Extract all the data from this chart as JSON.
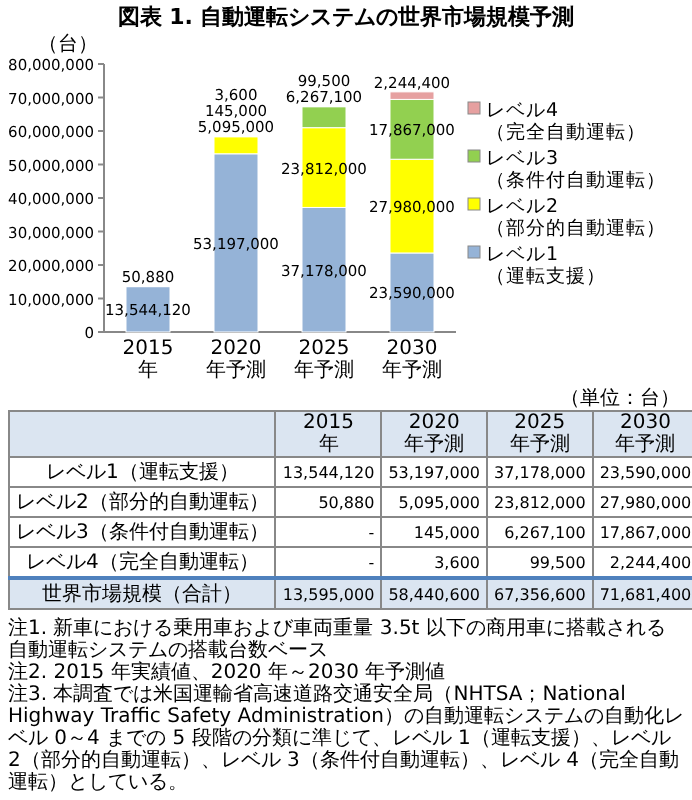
{
  "chart_data": {
    "type": "bar",
    "stacked": true,
    "title": "図表 1. 自動運転システムの世界市場規模予測",
    "ylabel": "（台）",
    "categories": [
      "2015年",
      "2020年予測",
      "2025年予測",
      "2030年予測"
    ],
    "series": [
      {
        "name": "レベル1\n（運転支援）",
        "color": "#95b3d7",
        "values": [
          13544120,
          53197000,
          37178000,
          23590000
        ],
        "value_labels": [
          "13,544,120",
          "53,197,000",
          "37,178,000",
          "23,590,000"
        ]
      },
      {
        "name": "レベル2\n（部分的自動運転）",
        "color": "#ffff00",
        "values": [
          50880,
          5095000,
          23812000,
          27980000
        ],
        "value_labels": [
          "50,880",
          "5,095,000",
          "23,812,000",
          "27,980,000"
        ]
      },
      {
        "name": "レベル3\n（条件付自動運転）",
        "color": "#92d050",
        "values": [
          null,
          145000,
          6267100,
          17867000
        ],
        "value_labels": [
          "-",
          "145,000",
          "6,267,100",
          "17,867,000"
        ]
      },
      {
        "name": "レベル4\n（完全自動運転）",
        "color": "#e6a0a0",
        "values": [
          null,
          3600,
          99500,
          2244400
        ],
        "value_labels": [
          "-",
          "3,600",
          "99,500",
          "2,244,400"
        ]
      }
    ],
    "ylim": [
      0,
      80000000
    ],
    "yticks": [
      {
        "value": 0,
        "label": "0"
      },
      {
        "value": 10000000,
        "label": "10,000,000"
      },
      {
        "value": 20000000,
        "label": "20,000,000"
      },
      {
        "value": 30000000,
        "label": "30,000,000"
      },
      {
        "value": 40000000,
        "label": "40,000,000"
      },
      {
        "value": 50000000,
        "label": "50,000,000"
      },
      {
        "value": 60000000,
        "label": "60,000,000"
      },
      {
        "value": 70000000,
        "label": "70,000,000"
      },
      {
        "value": 80000000,
        "label": "80,000,000"
      }
    ],
    "legend": "right",
    "grid": false,
    "annotations": [
      "（単位：台）",
      "世界市場規模（合計）",
      "13,595,000",
      "58,440,600",
      "67,356,600",
      "71,681,400",
      "注1. 新車における乗用車および車両重量 3.5t 以下の商用車に搭載される自動運転システムの搭載台数ベース",
      "注2. 2015 年実績値、2020 年～2030 年予測値",
      "注3. 本調査では米国運輸省高速道路交通安全局（NHTSA；National Highway Traffic Safety Administration）の自動運転システムの自動化レベル 0～4 までの 5 段階の分類に準じて、レベル 1（運転支援）、レベル 2（部分的自動運転）、レベル 3（条件付自動運転）、レベル 4（完全自動運転）としている。"
    ]
  }
}
